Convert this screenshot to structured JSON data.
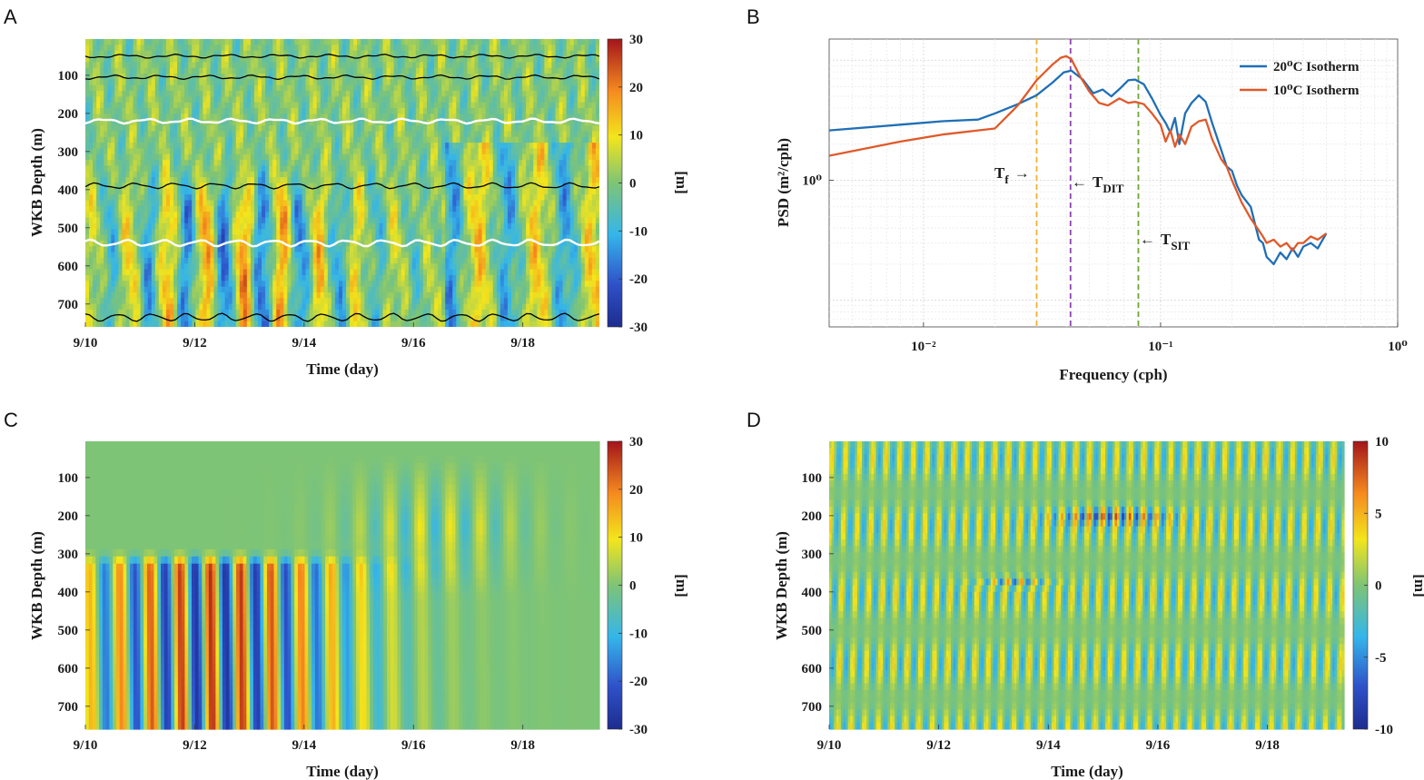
{
  "panels": {
    "A": {
      "letter": "A"
    },
    "B": {
      "letter": "B"
    },
    "C": {
      "letter": "C"
    },
    "D": {
      "letter": "D"
    }
  },
  "colors": {
    "series_20C": "#1f6fb5",
    "series_10C": "#e0592a",
    "tf_line": "#f2b134",
    "tdit_line": "#8e44ad",
    "tsit_line": "#6fa83a"
  },
  "chart_data": [
    {
      "panel": "A",
      "type": "heatmap",
      "xlabel": "Time (day)",
      "ylabel": "WKB Depth (m)",
      "colorbar_label": "[m]",
      "x_ticks": [
        "9/10",
        "9/12",
        "9/14",
        "9/16",
        "9/18"
      ],
      "x_tick_values": [
        10,
        12,
        14,
        16,
        18
      ],
      "xlim": [
        10,
        19.4
      ],
      "y_ticks": [
        "100",
        "200",
        "300",
        "400",
        "500",
        "600",
        "700"
      ],
      "y_tick_values": [
        100,
        200,
        300,
        400,
        500,
        600,
        700
      ],
      "ylim": [
        5,
        760
      ],
      "clim": [
        -30,
        30
      ],
      "colorbar_ticks": [
        "30",
        "20",
        "10",
        "0",
        "-10",
        "-20",
        "-30"
      ],
      "colorbar_tick_values": [
        30,
        20,
        10,
        0,
        -10,
        -20,
        -30
      ],
      "isotherm_mean_depths": [
        {
          "depth": 50,
          "color": "black"
        },
        {
          "depth": 105,
          "color": "black"
        },
        {
          "depth": 220,
          "color": "white"
        },
        {
          "depth": 390,
          "color": "black"
        },
        {
          "depth": 540,
          "color": "white"
        },
        {
          "depth": 735,
          "color": "black"
        }
      ]
    },
    {
      "panel": "B",
      "type": "line",
      "xscale": "log",
      "yscale": "log",
      "xlabel": "Frequency (cph)",
      "ylabel": "PSD (m²/cph)",
      "x_ticks": [
        "10⁻²",
        "10⁻¹",
        "10⁰"
      ],
      "x_tick_values": [
        0.01,
        0.1,
        1
      ],
      "xlim": [
        0.004,
        1
      ],
      "y_ticks": [
        "10⁰"
      ],
      "y_tick_values": [
        1
      ],
      "ylim": [
        0.06,
        15
      ],
      "grid": true,
      "legend_position": "top-right",
      "series": [
        {
          "name": "20°C Isotherm",
          "color": "#1f6fb5",
          "x": [
            0.004,
            0.008,
            0.012,
            0.017,
            0.02,
            0.025,
            0.03,
            0.035,
            0.039,
            0.042,
            0.047,
            0.052,
            0.057,
            0.062,
            0.068,
            0.073,
            0.078,
            0.085,
            0.092,
            0.1,
            0.105,
            0.11,
            0.115,
            0.12,
            0.127,
            0.135,
            0.145,
            0.155,
            0.165,
            0.18,
            0.19,
            0.2,
            0.21,
            0.22,
            0.24,
            0.26,
            0.27,
            0.28,
            0.3,
            0.32,
            0.34,
            0.36,
            0.38,
            0.4,
            0.43,
            0.46,
            0.5
          ],
          "y": [
            2.6,
            2.9,
            3.1,
            3.2,
            3.6,
            4.3,
            5.1,
            6.5,
            7.9,
            8.2,
            6.9,
            5.3,
            5.7,
            5.0,
            5.9,
            6.8,
            6.9,
            6.3,
            4.8,
            3.5,
            3.0,
            2.5,
            3.3,
            2.0,
            3.6,
            4.4,
            5.1,
            4.5,
            3.0,
            1.8,
            1.3,
            1.2,
            0.9,
            0.75,
            0.6,
            0.32,
            0.3,
            0.23,
            0.2,
            0.25,
            0.22,
            0.27,
            0.23,
            0.28,
            0.3,
            0.27,
            0.36
          ],
          "legend_label": "20⁰C Isotherm"
        },
        {
          "name": "10°C Isotherm",
          "color": "#e0592a",
          "x": [
            0.004,
            0.008,
            0.012,
            0.017,
            0.02,
            0.025,
            0.03,
            0.035,
            0.038,
            0.04,
            0.042,
            0.046,
            0.05,
            0.055,
            0.06,
            0.067,
            0.073,
            0.078,
            0.085,
            0.092,
            0.1,
            0.105,
            0.11,
            0.115,
            0.12,
            0.127,
            0.135,
            0.145,
            0.155,
            0.165,
            0.18,
            0.19,
            0.2,
            0.21,
            0.22,
            0.24,
            0.26,
            0.27,
            0.28,
            0.3,
            0.32,
            0.34,
            0.36,
            0.38,
            0.4,
            0.43,
            0.46,
            0.5
          ],
          "y": [
            1.6,
            2.1,
            2.4,
            2.6,
            2.7,
            4.2,
            6.8,
            9.2,
            10.5,
            10.8,
            10.2,
            7.2,
            5.5,
            4.4,
            4.2,
            4.8,
            4.4,
            4.5,
            4.3,
            3.6,
            2.9,
            2.1,
            2.6,
            1.9,
            2.4,
            2.0,
            2.8,
            3.1,
            3.2,
            2.2,
            1.5,
            1.3,
            1.0,
            0.8,
            0.65,
            0.48,
            0.38,
            0.34,
            0.3,
            0.32,
            0.28,
            0.3,
            0.26,
            0.3,
            0.3,
            0.34,
            0.32,
            0.36
          ],
          "legend_label": "10⁰C Isotherm"
        }
      ],
      "vertical_lines": [
        {
          "name": "Tf",
          "x": 0.03,
          "color": "#f2b134"
        },
        {
          "name": "TDIT",
          "x": 0.0417,
          "color": "#8e44ad"
        },
        {
          "name": "TSIT",
          "x": 0.0806,
          "color": "#6fa83a"
        }
      ],
      "annotations": {
        "tf_main": "T",
        "tf_sub": "f",
        "tf_arrow": "→",
        "tdit_arrow": "←",
        "tdit_main": "T",
        "tdit_sub": "DIT",
        "tsit_arrow": "←",
        "tsit_main": "T",
        "tsit_sub": "SIT"
      }
    },
    {
      "panel": "C",
      "type": "heatmap",
      "xlabel": "Time (day)",
      "ylabel": "WKB Depth (m)",
      "colorbar_label": "[m]",
      "x_ticks": [
        "9/10",
        "9/12",
        "9/14",
        "9/16",
        "9/18"
      ],
      "x_tick_values": [
        10,
        12,
        14,
        16,
        18
      ],
      "xlim": [
        10,
        19.4
      ],
      "y_ticks": [
        "100",
        "200",
        "300",
        "400",
        "500",
        "600",
        "700"
      ],
      "y_tick_values": [
        100,
        200,
        300,
        400,
        500,
        600,
        700
      ],
      "ylim": [
        5,
        760
      ],
      "clim": [
        -30,
        30
      ],
      "colorbar_ticks": [
        "30",
        "20",
        "10",
        "0",
        "-10",
        "-20",
        "-30"
      ],
      "colorbar_tick_values": [
        30,
        20,
        10,
        0,
        -10,
        -20,
        -30
      ]
    },
    {
      "panel": "D",
      "type": "heatmap",
      "xlabel": "Time (day)",
      "ylabel": "WKB Depth (m)",
      "colorbar_label": "[m]",
      "x_ticks": [
        "9/10",
        "9/12",
        "9/14",
        "9/16",
        "9/18"
      ],
      "x_tick_values": [
        10,
        12,
        14,
        16,
        18
      ],
      "xlim": [
        10,
        19.4
      ],
      "y_ticks": [
        "100",
        "200",
        "300",
        "400",
        "500",
        "600",
        "700"
      ],
      "y_tick_values": [
        100,
        200,
        300,
        400,
        500,
        600,
        700
      ],
      "ylim": [
        5,
        760
      ],
      "clim": [
        -10,
        10
      ],
      "colorbar_ticks": [
        "10",
        "5",
        "0",
        "-5",
        "-10"
      ],
      "colorbar_tick_values": [
        10,
        5,
        0,
        -5,
        -10
      ]
    }
  ]
}
